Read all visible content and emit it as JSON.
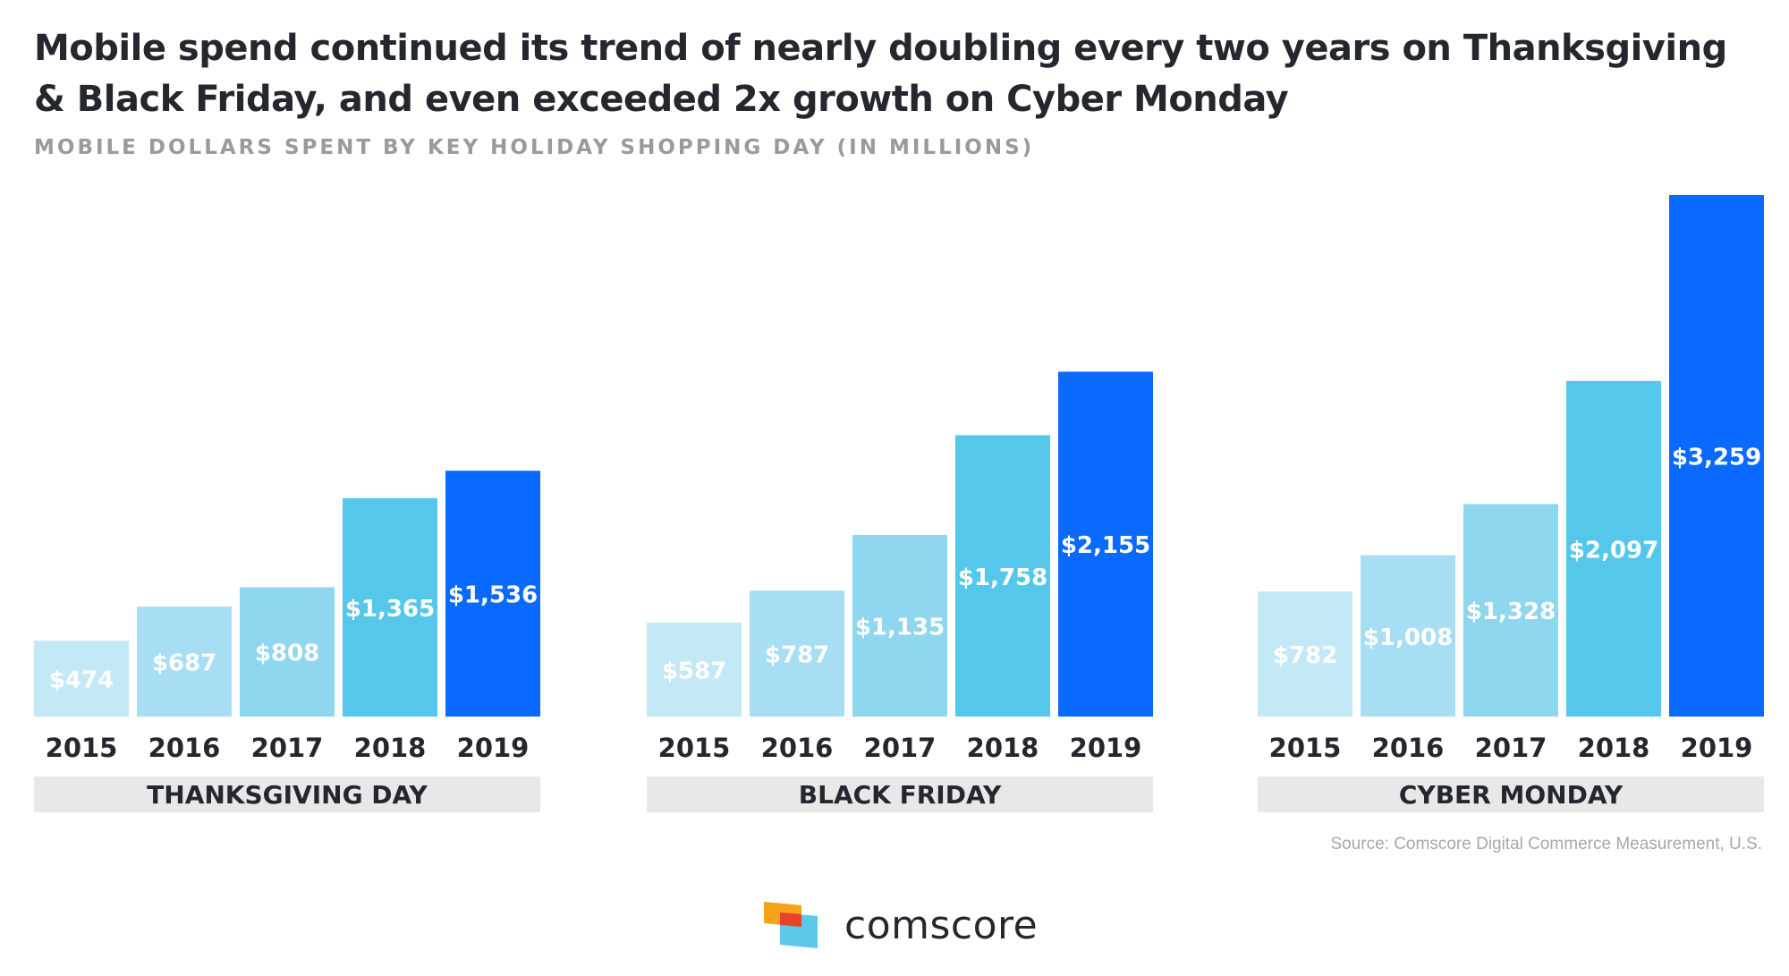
{
  "title_lines": [
    "Mobile spend continued its trend of nearly doubling every two years on Thanksgiving",
    "& Black Friday, and even exceeded 2x growth on Cyber Monday"
  ],
  "subtitle": "MOBILE DOLLARS SPENT BY KEY HOLIDAY SHOPPING DAY (IN MILLIONS)",
  "source": "Source: Comscore Digital Commerce Measurement, U.S.",
  "logo": {
    "name": "comscore",
    "icon": "comscore-logo-icon"
  },
  "colors": {
    "2015": "#c3e8f6",
    "2016": "#a8def3",
    "2017": "#8fd6ef",
    "2018": "#55c7ea",
    "2019": "#0a6aff",
    "label_band": "#e8e8e8",
    "text_dark": "#25272e"
  },
  "chart_data": {
    "type": "bar",
    "title": "Mobile spend continued its trend of nearly doubling every two years on Thanksgiving & Black Friday, and even exceeded 2x growth on Cyber Monday",
    "subtitle": "MOBILE DOLLARS SPENT BY KEY HOLIDAY SHOPPING DAY (IN MILLIONS)",
    "categories": [
      "2015",
      "2016",
      "2017",
      "2018",
      "2019"
    ],
    "groups": [
      {
        "name": "THANKSGIVING DAY",
        "values": [
          474,
          687,
          808,
          1365,
          1536
        ],
        "labels": [
          "$474",
          "$687",
          "$808",
          "$1,365",
          "$1,536"
        ]
      },
      {
        "name": "BLACK FRIDAY",
        "values": [
          587,
          787,
          1135,
          1758,
          2155
        ],
        "labels": [
          "$587",
          "$787",
          "$1,135",
          "$1,758",
          "$2,155"
        ]
      },
      {
        "name": "CYBER MONDAY",
        "values": [
          782,
          1008,
          1328,
          2097,
          3259
        ],
        "labels": [
          "$782",
          "$1,008",
          "$1,328",
          "$2,097",
          "$3,259"
        ]
      }
    ],
    "ylim": [
      0,
      3259
    ],
    "grid": false,
    "legend": "none"
  }
}
